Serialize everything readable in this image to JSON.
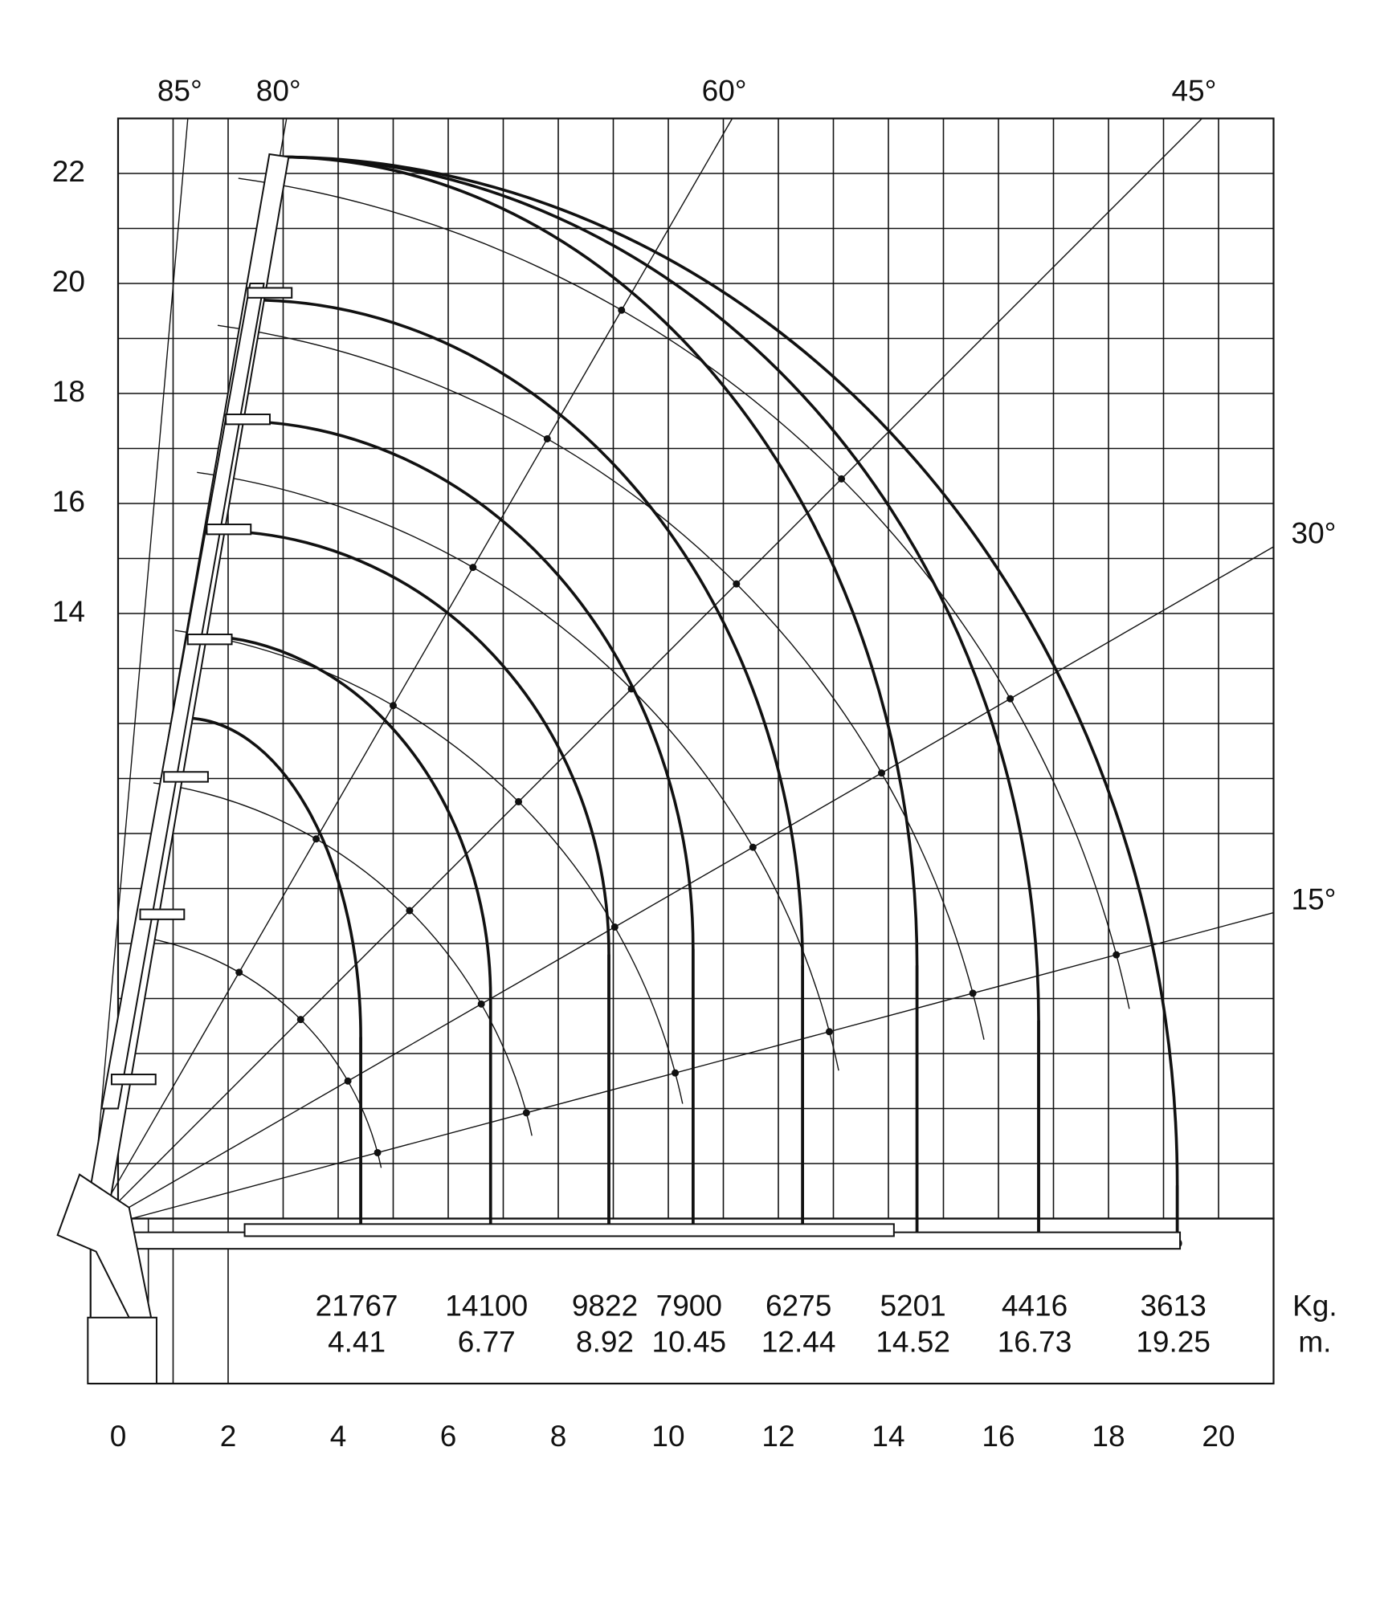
{
  "chart_data": {
    "type": "load_chart",
    "xlim": [
      -0.5,
      21
    ],
    "ylim": [
      0,
      23
    ],
    "xticks": [
      0,
      2,
      4,
      6,
      8,
      10,
      12,
      14,
      16,
      18,
      20
    ],
    "yticks": [
      14,
      16,
      18,
      20,
      22
    ],
    "angles": [
      {
        "value": 85,
        "label": "85°"
      },
      {
        "value": 80,
        "label": "80°"
      },
      {
        "value": 60,
        "label": "60°"
      },
      {
        "value": 45,
        "label": "45°"
      },
      {
        "value": 30,
        "label": "30°"
      },
      {
        "value": 15,
        "label": "15°"
      }
    ],
    "loads": {
      "unit_label": "Kg.",
      "values": [
        21767,
        14100,
        9822,
        7900,
        6275,
        5201,
        4416,
        3613
      ]
    },
    "reaches": {
      "unit_label": "m.",
      "values": [
        4.41,
        6.77,
        8.92,
        10.45,
        12.44,
        14.52,
        16.73,
        19.25
      ]
    }
  }
}
